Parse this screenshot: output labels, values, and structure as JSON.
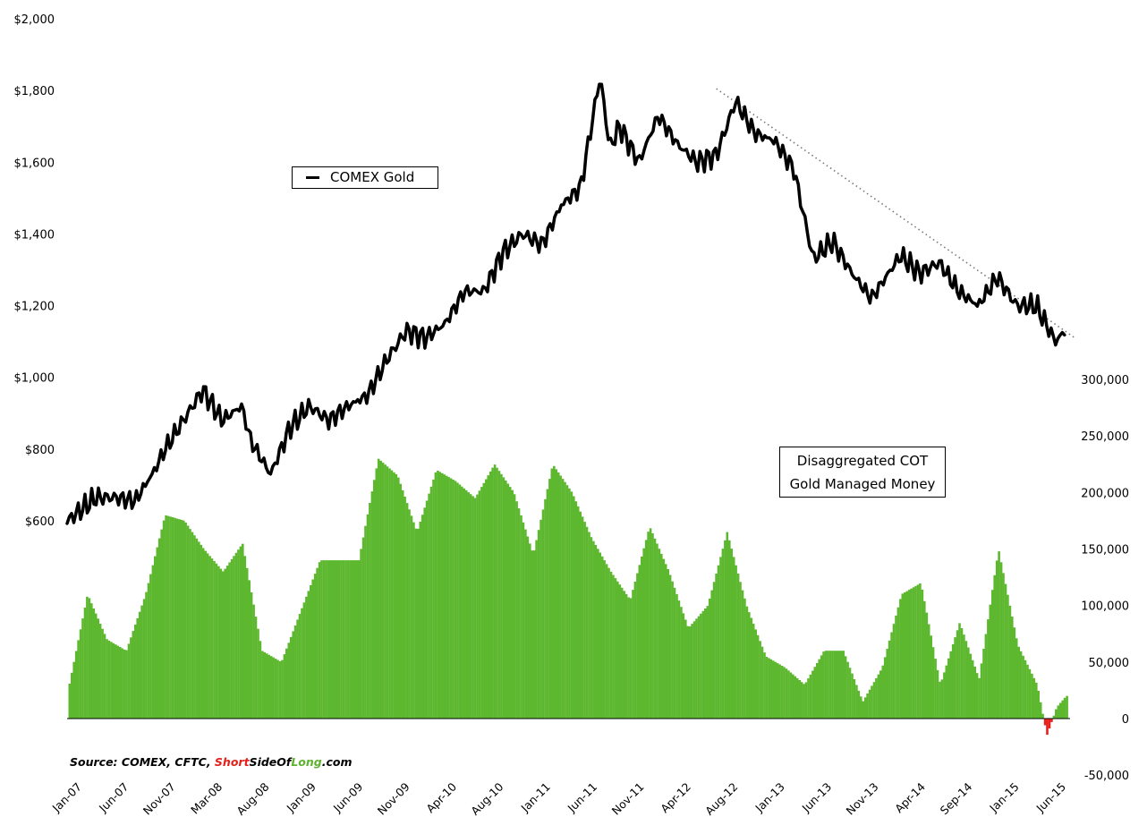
{
  "chart_data": [
    {
      "type": "line",
      "series": [
        {
          "name": "COMEX Gold",
          "color": "#000000"
        }
      ],
      "y_axis": {
        "side": "left",
        "ticks": [
          "$2,000",
          "$1,800",
          "$1,600",
          "$1,400",
          "$1,200",
          "$1,000",
          "$800",
          "$600"
        ],
        "tick_values": [
          2000,
          1800,
          1600,
          1400,
          1200,
          1000,
          800,
          600
        ],
        "ylim": [
          600,
          2000
        ]
      },
      "x_axis": {
        "ticks": [
          "Jan-07",
          "Jun-07",
          "Nov-07",
          "Mar-08",
          "Aug-08",
          "Jan-09",
          "Jun-09",
          "Nov-09",
          "Apr-10",
          "Aug-10",
          "Jan-11",
          "Jun-11",
          "Nov-11",
          "Apr-12",
          "Aug-12",
          "Jan-13",
          "Jun-13",
          "Nov-13",
          "Apr-14",
          "Sep-14",
          "Jan-15",
          "Jun-15"
        ]
      },
      "x": [
        "2007-01",
        "2007-04",
        "2007-06",
        "2007-08",
        "2007-10",
        "2007-11",
        "2008-01",
        "2008-03",
        "2008-05",
        "2008-07",
        "2008-08",
        "2008-10",
        "2008-12",
        "2009-02",
        "2009-04",
        "2009-06",
        "2009-08",
        "2009-10",
        "2009-12",
        "2010-02",
        "2010-04",
        "2010-06",
        "2010-08",
        "2010-10",
        "2010-12",
        "2011-02",
        "2011-04",
        "2011-06",
        "2011-08",
        "2011-09",
        "2011-10",
        "2011-12",
        "2012-02",
        "2012-04",
        "2012-06",
        "2012-08",
        "2012-10",
        "2012-12",
        "2013-02",
        "2013-04",
        "2013-06",
        "2013-08",
        "2013-10",
        "2013-12",
        "2014-02",
        "2014-03",
        "2014-05",
        "2014-07",
        "2014-09",
        "2014-11",
        "2015-01",
        "2015-03",
        "2015-05",
        "2015-07",
        "2015-08"
      ],
      "values": [
        600,
        665,
        665,
        655,
        740,
        795,
        880,
        965,
        880,
        920,
        820,
        730,
        860,
        920,
        880,
        920,
        950,
        1050,
        1130,
        1110,
        1150,
        1240,
        1240,
        1350,
        1400,
        1370,
        1480,
        1530,
        1840,
        1640,
        1700,
        1600,
        1730,
        1650,
        1600,
        1620,
        1770,
        1680,
        1660,
        1580,
        1330,
        1380,
        1290,
        1220,
        1300,
        1340,
        1290,
        1320,
        1240,
        1200,
        1280,
        1200,
        1200,
        1100,
        1130
      ],
      "trendline": {
        "style": "dotted",
        "start": {
          "x": "2012-08",
          "y": 1805
        },
        "end": {
          "x": "2015-09",
          "y": 1110
        }
      }
    },
    {
      "type": "bar",
      "series": [
        {
          "name": "Disaggregated COT Gold Managed Money",
          "color_positive": "#5db82f",
          "color_negative": "#e8201b"
        }
      ],
      "y_axis": {
        "side": "right",
        "ticks": [
          "300,000",
          "250,000",
          "200,000",
          "150,000",
          "100,000",
          "50,000",
          "0",
          "-50,000"
        ],
        "tick_values": [
          300000,
          250000,
          200000,
          150000,
          100000,
          50000,
          0,
          -50000
        ],
        "ylim": [
          -50000,
          300000
        ]
      },
      "x": [
        "2007-01",
        "2007-03",
        "2007-05",
        "2007-07",
        "2007-09",
        "2007-11",
        "2008-01",
        "2008-03",
        "2008-05",
        "2008-07",
        "2008-09",
        "2008-11",
        "2009-01",
        "2009-03",
        "2009-05",
        "2009-07",
        "2009-09",
        "2009-11",
        "2010-01",
        "2010-03",
        "2010-05",
        "2010-07",
        "2010-09",
        "2010-11",
        "2011-01",
        "2011-03",
        "2011-05",
        "2011-07",
        "2011-09",
        "2011-11",
        "2012-01",
        "2012-03",
        "2012-05",
        "2012-07",
        "2012-09",
        "2012-11",
        "2013-01",
        "2013-03",
        "2013-05",
        "2013-07",
        "2013-09",
        "2013-11",
        "2014-01",
        "2014-03",
        "2014-05",
        "2014-07",
        "2014-09",
        "2014-11",
        "2015-01",
        "2015-03",
        "2015-05",
        "2015-06",
        "2015-07",
        "2015-08"
      ],
      "values": [
        25000,
        110000,
        70000,
        60000,
        110000,
        180000,
        175000,
        150000,
        130000,
        155000,
        60000,
        50000,
        95000,
        140000,
        140000,
        140000,
        230000,
        215000,
        165000,
        220000,
        210000,
        195000,
        225000,
        200000,
        145000,
        225000,
        200000,
        160000,
        130000,
        105000,
        170000,
        130000,
        80000,
        100000,
        165000,
        100000,
        55000,
        45000,
        30000,
        60000,
        60000,
        15000,
        45000,
        110000,
        120000,
        30000,
        85000,
        35000,
        150000,
        65000,
        30000,
        -15000,
        10000,
        20000
      ]
    }
  ],
  "legends": {
    "gold": "COMEX Gold",
    "cot_line1": "Disaggregated COT",
    "cot_line2": "Gold Managed Money"
  },
  "source": {
    "prefix": "Source: COMEX, CFTC, ",
    "brand_1": "Short",
    "brand_2": "SideOf",
    "brand_3": "Long",
    "suffix": ".com"
  }
}
